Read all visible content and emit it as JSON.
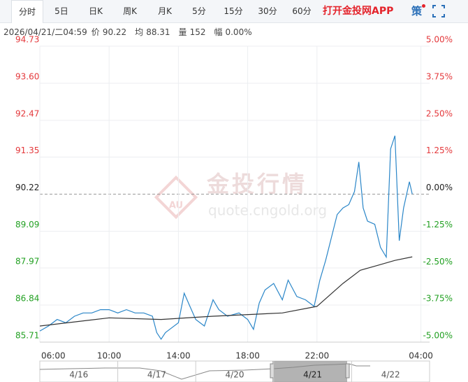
{
  "header": {
    "tabs": [
      "分时",
      "5日",
      "日K",
      "周K",
      "月K",
      "5分",
      "15分",
      "30分",
      "60分"
    ],
    "active_tab": 0,
    "app_link": "打开金投网APP",
    "strategy": "策"
  },
  "info": {
    "time": "2026/04/21/二04:59",
    "items": [
      {
        "label": "价",
        "value": "90.22"
      },
      {
        "label": "均",
        "value": "88.31"
      },
      {
        "label": "量",
        "value": "152"
      },
      {
        "label": "幅",
        "value": "0.00%"
      }
    ]
  },
  "watermark": {
    "title": "金投行情",
    "url": "quote.cngold.org",
    "logo": "AU"
  },
  "chart_data": {
    "type": "line",
    "series": [
      {
        "color": "#2a86c8",
        "x": [
          0,
          30,
          60,
          90,
          120,
          150,
          180,
          210,
          240,
          270,
          300,
          330,
          360,
          390,
          405,
          420,
          435,
          450,
          480,
          500,
          520,
          540,
          570,
          600,
          620,
          650,
          690,
          720,
          740,
          760,
          780,
          810,
          840,
          860,
          890,
          920,
          950,
          970,
          990,
          1010,
          1030,
          1050,
          1070,
          1090,
          1105,
          1120,
          1135,
          1160,
          1180,
          1200,
          1215,
          1230,
          1245,
          1260,
          1280,
          1290
        ],
        "values": [
          86.05,
          86.2,
          86.4,
          86.3,
          86.5,
          86.6,
          86.6,
          86.7,
          86.7,
          86.6,
          86.7,
          86.6,
          86.6,
          86.5,
          86.0,
          85.8,
          86.0,
          86.1,
          86.3,
          87.2,
          86.8,
          86.4,
          86.2,
          87.0,
          86.7,
          86.5,
          86.6,
          86.4,
          86.1,
          86.9,
          87.3,
          87.5,
          87.0,
          87.6,
          87.1,
          87.0,
          86.8,
          87.6,
          88.2,
          88.9,
          89.6,
          89.8,
          89.9,
          90.3,
          91.2,
          89.8,
          89.4,
          89.3,
          88.6,
          88.3,
          91.6,
          92.0,
          88.8,
          89.8,
          90.6,
          90.22
        ]
      },
      {
        "color": "#333333",
        "x": [
          0,
          240,
          420,
          600,
          840,
          960,
          1050,
          1110,
          1170,
          1230,
          1290
        ],
        "values": [
          86.2,
          86.45,
          86.4,
          86.5,
          86.6,
          86.8,
          87.5,
          87.9,
          88.05,
          88.2,
          88.31
        ]
      }
    ],
    "xlim": [
      0,
      1350
    ],
    "xticks": [
      {
        "value": 0,
        "label": "06:00"
      },
      {
        "value": 240,
        "label": "10:00"
      },
      {
        "value": 480,
        "label": "14:00"
      },
      {
        "value": 720,
        "label": "18:00"
      },
      {
        "value": 960,
        "label": "22:00"
      },
      {
        "value": 1320,
        "label": "04:00"
      }
    ],
    "ylim": [
      85.71,
      94.73
    ],
    "yticks": [
      94.73,
      {
        "value": 93.6,
        "label": "93.60"
      },
      92.47,
      91.35,
      90.22,
      89.09,
      87.97,
      86.84,
      85.71
    ],
    "y2lim": [
      -5,
      5
    ],
    "y2ticks": [
      {
        "value": 5,
        "label": "5.00%"
      },
      {
        "value": 3.75,
        "label": "3.75%"
      },
      {
        "value": 2.5,
        "label": "2.50%"
      },
      {
        "value": 1.25,
        "label": "1.25%"
      },
      {
        "value": 0,
        "label": "0.00%"
      },
      {
        "value": -1.25,
        "label": "-1.25%"
      },
      {
        "value": -2.5,
        "label": "-2.50%"
      },
      {
        "value": -3.75,
        "label": "-3.75%"
      },
      {
        "value": -5,
        "label": "-5.00%"
      }
    ],
    "reference": 90.22,
    "up_color": "#e4393c",
    "down_color": "#22a022",
    "grid": true
  },
  "navigator": {
    "labels": [
      "4/16",
      "4/17",
      "4/20",
      "4/21",
      "4/22"
    ],
    "selected": 3
  }
}
